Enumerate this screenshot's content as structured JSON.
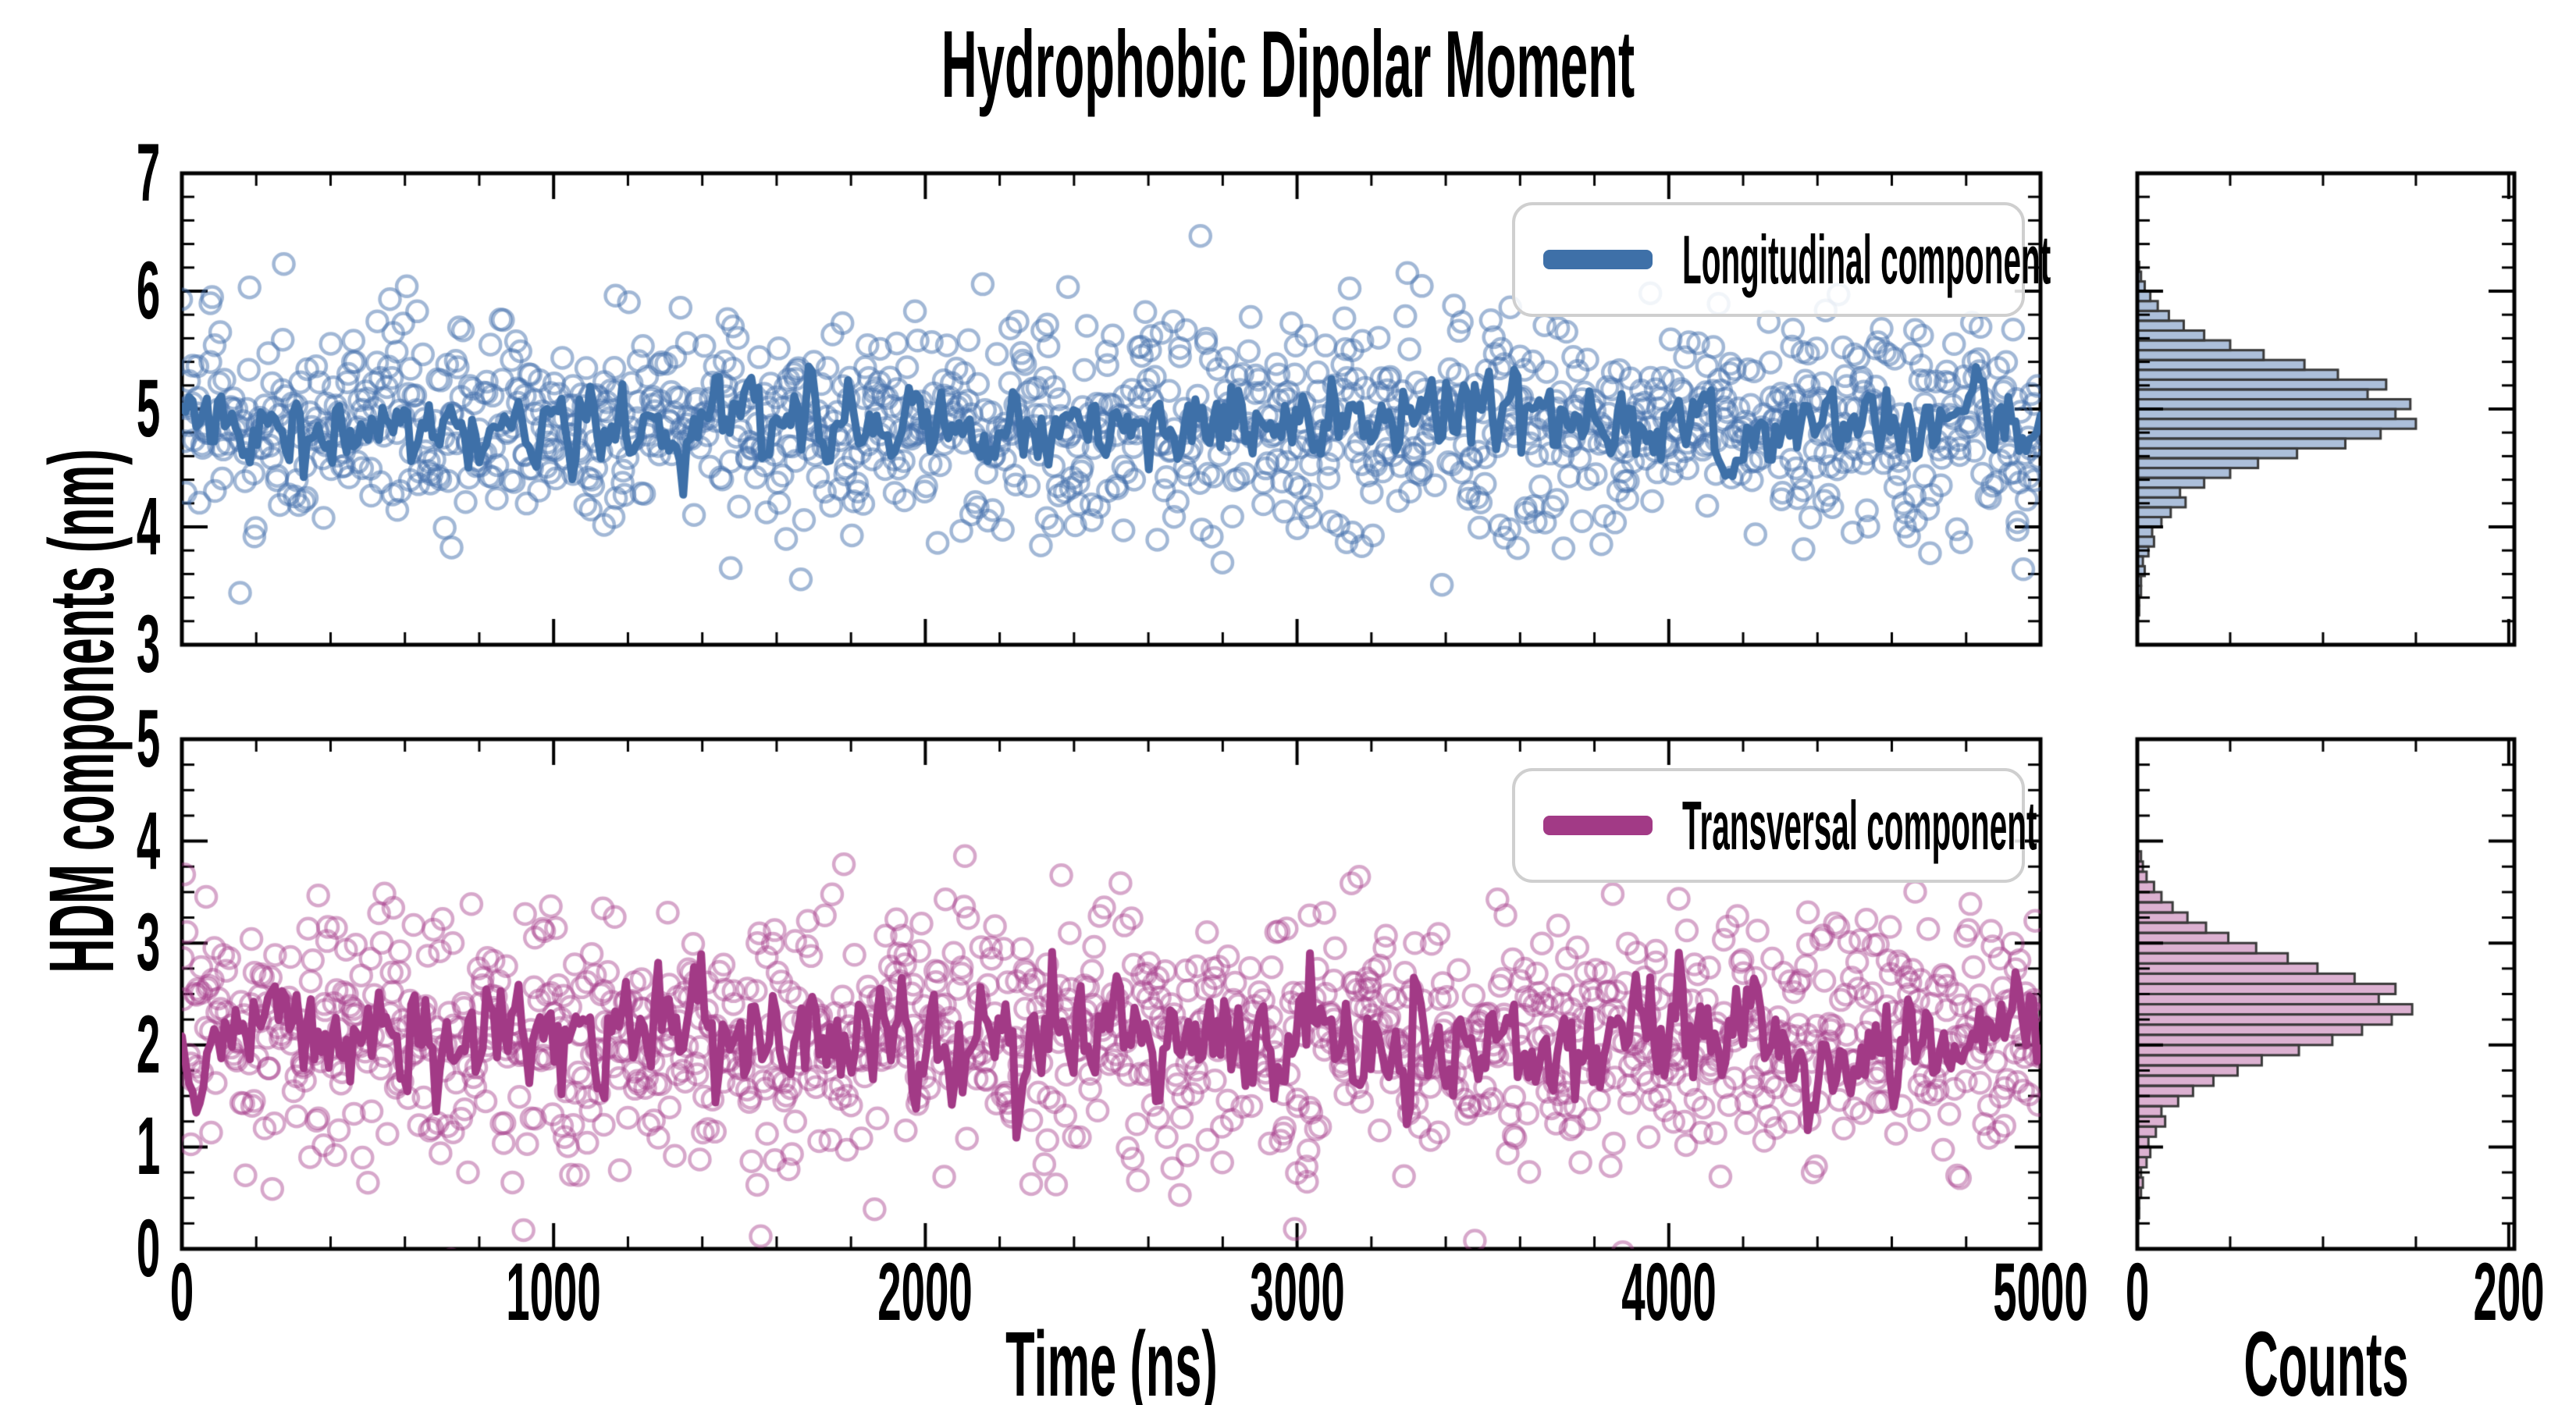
{
  "figure": {
    "title": "Hydrophobic Dipolar Moment",
    "ylabel": "HDM components (nm)",
    "xlabel": "Time (ns)",
    "hist_xlabel": "Counts",
    "background": "#ffffff"
  },
  "chart_data": [
    {
      "type": "scatter",
      "panel": "top-timeseries",
      "legend": "Longitudinal component",
      "x": {
        "label": "Time (ns)",
        "range": [
          0,
          5000
        ],
        "major_ticks": [
          0,
          1000,
          2000,
          3000,
          4000,
          5000
        ],
        "minor_step": 200
      },
      "y": {
        "range": [
          3,
          7
        ],
        "major_ticks": [
          3,
          4,
          5,
          6,
          7
        ],
        "minor_step": 0.2
      },
      "grid": false,
      "legend_position": "upper right",
      "scatter": {
        "n": 1250,
        "mean": 4.88,
        "std": 0.45,
        "seed": 7,
        "marker": "open-circle",
        "radius": 13,
        "stroke_width": 4.5
      },
      "line": {
        "n": 520,
        "mean": 4.88,
        "std": 0.18,
        "ar": 0.45,
        "seed": 3,
        "width": 10
      },
      "colors": {
        "line": "#3E70A8",
        "scatter_edge": "rgba(70,114,174,0.5)"
      }
    },
    {
      "type": "scatter",
      "panel": "bottom-timeseries",
      "legend": "Transversal component",
      "x": {
        "label": "Time (ns)",
        "range": [
          0,
          5000
        ],
        "major_ticks": [
          0,
          1000,
          2000,
          3000,
          4000,
          5000
        ],
        "minor_step": 200
      },
      "y": {
        "range": [
          0,
          5
        ],
        "major_ticks": [
          0,
          1,
          2,
          3,
          4,
          5
        ],
        "minor_step": 0.25
      },
      "grid": false,
      "legend_position": "upper right",
      "scatter": {
        "n": 1250,
        "mean": 2.08,
        "std": 0.6,
        "seed": 13,
        "marker": "open-circle",
        "radius": 13,
        "stroke_width": 4.5
      },
      "line": {
        "n": 520,
        "mean": 2.05,
        "std": 0.3,
        "ar": 0.4,
        "seed": 5,
        "width": 10
      },
      "colors": {
        "line": "#A23A86",
        "scatter_edge": "rgba(167,61,139,0.45)"
      }
    },
    {
      "type": "histogram-horizontal",
      "panel": "top-histogram",
      "x": {
        "label": "Counts",
        "range": [
          0,
          203
        ],
        "major_ticks": [
          0,
          200
        ],
        "minor_ticks": [
          50,
          100,
          150
        ]
      },
      "y": {
        "range": [
          3,
          7
        ],
        "major_ticks": [
          3,
          4,
          5,
          6,
          7
        ],
        "minor_step": 0.2
      },
      "bins": {
        "start": 3.25,
        "width": 0.0833,
        "counts": [
          1,
          1,
          2,
          2,
          4,
          3,
          6,
          9,
          8,
          13,
          18,
          26,
          23,
          36,
          50,
          65,
          86,
          112,
          131,
          150,
          139,
          147,
          124,
          134,
          108,
          90,
          68,
          50,
          36,
          25,
          17,
          11,
          7,
          4,
          2,
          1
        ]
      },
      "colors": {
        "fill": "rgba(70,114,174,0.45)",
        "edge": "#3a3a3a"
      }
    },
    {
      "type": "histogram-horizontal",
      "panel": "bottom-histogram",
      "x": {
        "label": "Counts",
        "range": [
          0,
          203
        ],
        "major_ticks": [
          0,
          200
        ],
        "minor_ticks": [
          50,
          100,
          150
        ]
      },
      "y": {
        "range": [
          0,
          5
        ],
        "major_ticks": [
          0,
          1,
          2,
          3,
          4,
          5
        ],
        "minor_step": 0.25
      },
      "bins": {
        "start": 0.3,
        "width": 0.1,
        "counts": [
          1,
          1,
          2,
          3,
          2,
          5,
          7,
          6,
          10,
          15,
          13,
          22,
          30,
          41,
          54,
          67,
          87,
          105,
          121,
          137,
          148,
          130,
          139,
          117,
          97,
          81,
          64,
          49,
          37,
          27,
          19,
          13,
          9,
          5,
          3,
          2
        ]
      },
      "colors": {
        "fill": "rgba(167,61,139,0.4)",
        "edge": "#3a3a3a"
      }
    }
  ]
}
